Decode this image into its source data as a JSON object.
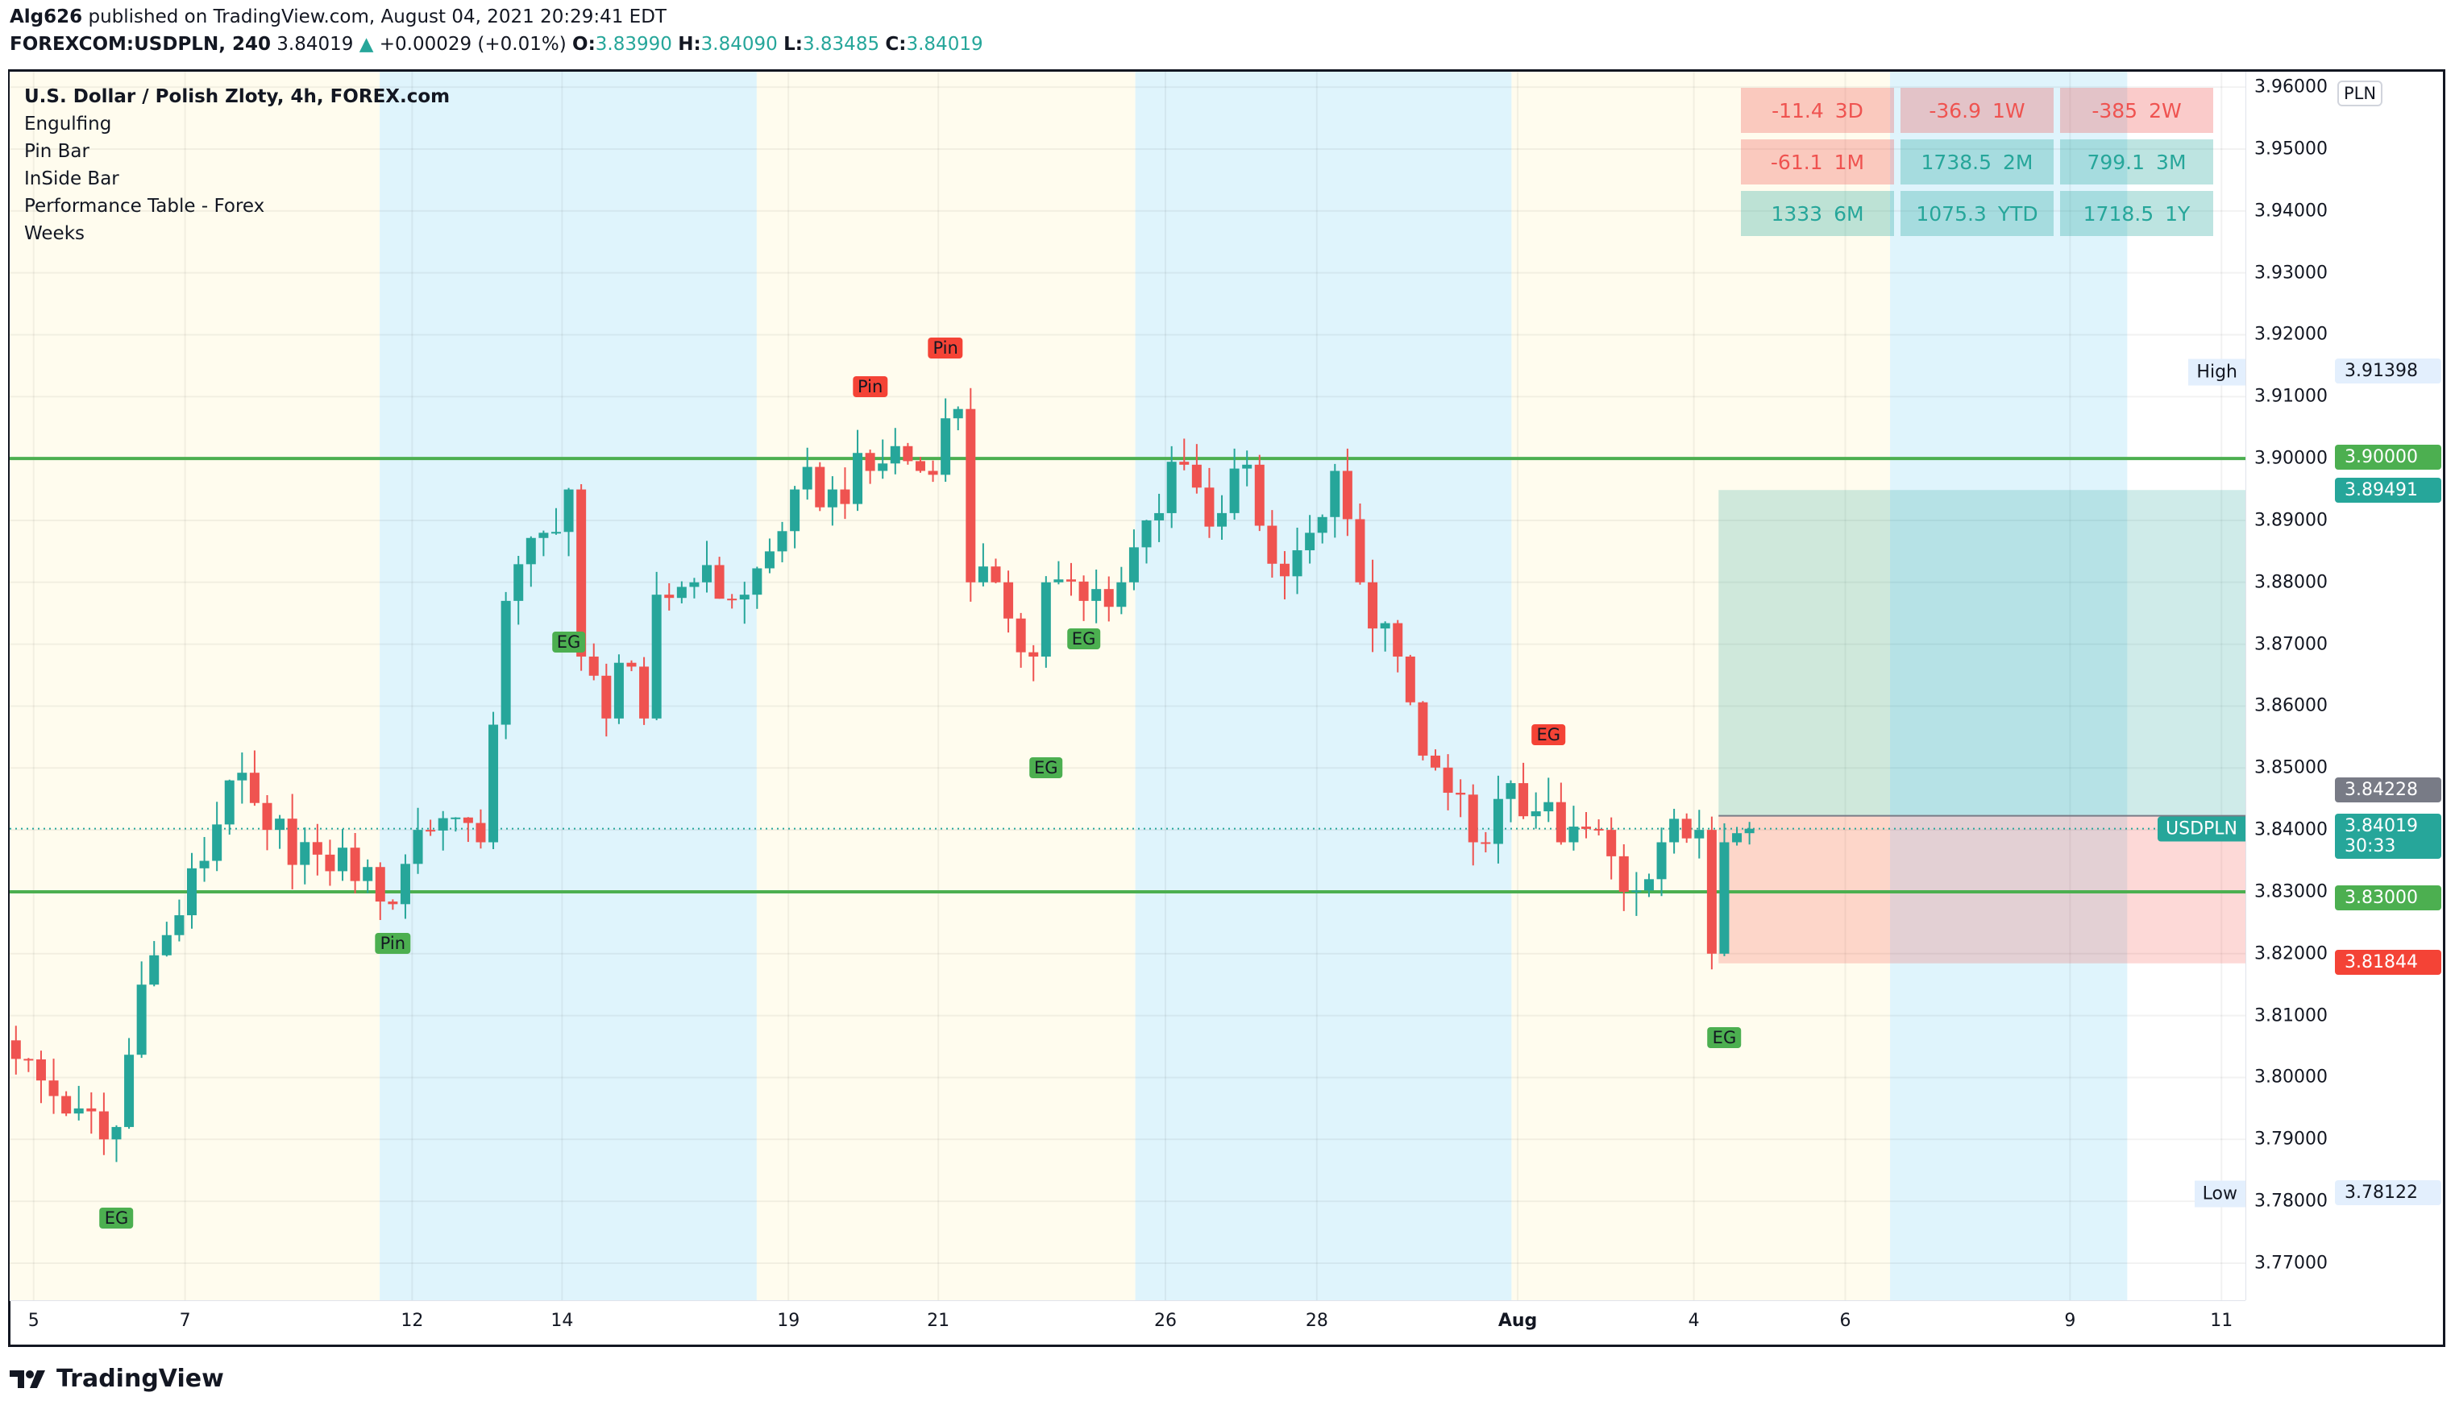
{
  "header": {
    "user": "Alg626",
    "published": "published on TradingView.com, August 04, 2021 20:29:41 EDT",
    "symbol": "FOREXCOM:USDPLN, 240",
    "last": "3.84019",
    "change": "+0.00029 (+0.01%)",
    "o_label": "O:",
    "o": "3.83990",
    "h_label": "H:",
    "h": "3.84090",
    "l_label": "L:",
    "l": "3.83485",
    "c_label": "C:",
    "c": "3.84019"
  },
  "legend": [
    "U.S. Dollar / Polish Zloty, 4h, FOREX.com",
    "Engulfing",
    "Pin Bar",
    "InSide Bar",
    "Performance Table - Forex",
    "Weeks"
  ],
  "performance": [
    {
      "value": "-11.4",
      "period": "3D",
      "sign": "neg"
    },
    {
      "value": "-36.9",
      "period": "1W",
      "sign": "neg"
    },
    {
      "value": "-385",
      "period": "2W",
      "sign": "neg"
    },
    {
      "value": "-61.1",
      "period": "1M",
      "sign": "neg"
    },
    {
      "value": "1738.5",
      "period": "2M",
      "sign": "pos"
    },
    {
      "value": "799.1",
      "period": "3M",
      "sign": "pos"
    },
    {
      "value": "1333",
      "period": "6M",
      "sign": "pos"
    },
    {
      "value": "1075.3",
      "period": "YTD",
      "sign": "pos"
    },
    {
      "value": "1718.5",
      "period": "1Y",
      "sign": "pos"
    }
  ],
  "currency": "PLN",
  "price_ticks": [
    "3.96000",
    "3.95000",
    "3.94000",
    "3.93000",
    "3.92000",
    "3.91000",
    "3.90000",
    "3.89000",
    "3.88000",
    "3.87000",
    "3.86000",
    "3.85000",
    "3.84000",
    "3.83000",
    "3.82000",
    "3.81000",
    "3.80000",
    "3.79000",
    "3.78000",
    "3.77000"
  ],
  "time_labels": [
    "5",
    "7",
    "12",
    "14",
    "19",
    "21",
    "26",
    "28",
    "Aug",
    "4",
    "6",
    "9",
    "11"
  ],
  "high": {
    "label": "High",
    "value": "3.91398"
  },
  "low": {
    "label": "Low",
    "value": "3.78122"
  },
  "badges": {
    "line_upper": "3.90000",
    "target": "3.89491",
    "entry": "3.84228",
    "last": "3.84019",
    "countdown": "30:33",
    "line_lower": "3.83000",
    "stop": "3.81844",
    "symbol": "USDPLN"
  },
  "colors": {
    "up": "#26a69a",
    "down": "#ef5350",
    "line": "#4caf50",
    "week_a": "#fffcee",
    "week_b": "#dff4fc"
  },
  "chart_data": {
    "type": "candlestick",
    "timeframe": "4h",
    "close_path": [
      [
        0,
        3.803
      ],
      [
        3,
        3.797
      ],
      [
        5,
        3.795
      ],
      [
        7,
        3.79
      ],
      [
        8,
        3.792
      ],
      [
        10,
        3.815
      ],
      [
        12,
        3.823
      ],
      [
        15,
        3.835
      ],
      [
        17,
        3.848
      ],
      [
        20,
        3.84
      ],
      [
        24,
        3.836
      ],
      [
        28,
        3.834
      ],
      [
        30,
        3.828
      ],
      [
        32,
        3.84
      ],
      [
        35,
        3.842
      ],
      [
        37,
        3.838
      ],
      [
        38,
        3.857
      ],
      [
        39,
        3.877
      ],
      [
        42,
        3.888
      ],
      [
        44,
        3.895
      ],
      [
        45,
        3.868
      ],
      [
        47,
        3.858
      ],
      [
        48,
        3.867
      ],
      [
        50,
        3.858
      ],
      [
        51,
        3.878
      ],
      [
        54,
        3.88
      ],
      [
        58,
        3.878
      ],
      [
        60,
        3.885
      ],
      [
        62,
        3.895
      ],
      [
        65,
        3.895
      ],
      [
        68,
        3.898
      ],
      [
        70,
        3.902
      ],
      [
        72,
        3.898
      ],
      [
        75,
        3.908
      ],
      [
        76,
        3.88
      ],
      [
        78,
        3.88
      ],
      [
        81,
        3.868
      ],
      [
        82,
        3.88
      ],
      [
        85,
        3.877
      ],
      [
        88,
        3.88
      ],
      [
        90,
        3.89
      ],
      [
        93,
        3.899
      ],
      [
        95,
        3.889
      ],
      [
        98,
        3.899
      ],
      [
        100,
        3.883
      ],
      [
        103,
        3.888
      ],
      [
        105,
        3.898
      ],
      [
        107,
        3.88
      ],
      [
        110,
        3.868
      ],
      [
        112,
        3.852
      ],
      [
        114,
        3.846
      ],
      [
        116,
        3.838
      ],
      [
        118,
        3.845
      ],
      [
        121,
        3.843
      ],
      [
        123,
        3.838
      ],
      [
        126,
        3.84
      ],
      [
        128,
        3.83
      ],
      [
        131,
        3.838
      ],
      [
        134,
        3.84
      ],
      [
        135,
        3.82
      ],
      [
        136,
        3.838
      ],
      [
        138,
        3.84019
      ]
    ],
    "horizontal_lines": [
      3.9,
      3.83
    ],
    "position": {
      "target": 3.89491,
      "entry": 3.84228,
      "stop": 3.81844
    },
    "markers": [
      {
        "text": "EG",
        "bar": 8,
        "price": 3.7773,
        "kind": "g"
      },
      {
        "text": "Pin",
        "bar": 30,
        "price": 3.8216,
        "kind": "g"
      },
      {
        "text": "EG",
        "bar": 44,
        "price": 3.8704,
        "kind": "g"
      },
      {
        "text": "Pin",
        "bar": 68,
        "price": 3.9116,
        "kind": "r"
      },
      {
        "text": "Pin",
        "bar": 74,
        "price": 3.9179,
        "kind": "r"
      },
      {
        "text": "EG",
        "bar": 82,
        "price": 3.85,
        "kind": "g"
      },
      {
        "text": "EG",
        "bar": 85,
        "price": 3.8709,
        "kind": "g"
      },
      {
        "text": "EG",
        "bar": 122,
        "price": 3.8554,
        "kind": "r"
      },
      {
        "text": "EG",
        "bar": 136,
        "price": 3.8064,
        "kind": "g"
      }
    ]
  },
  "footer": {
    "brand": "TradingView"
  }
}
